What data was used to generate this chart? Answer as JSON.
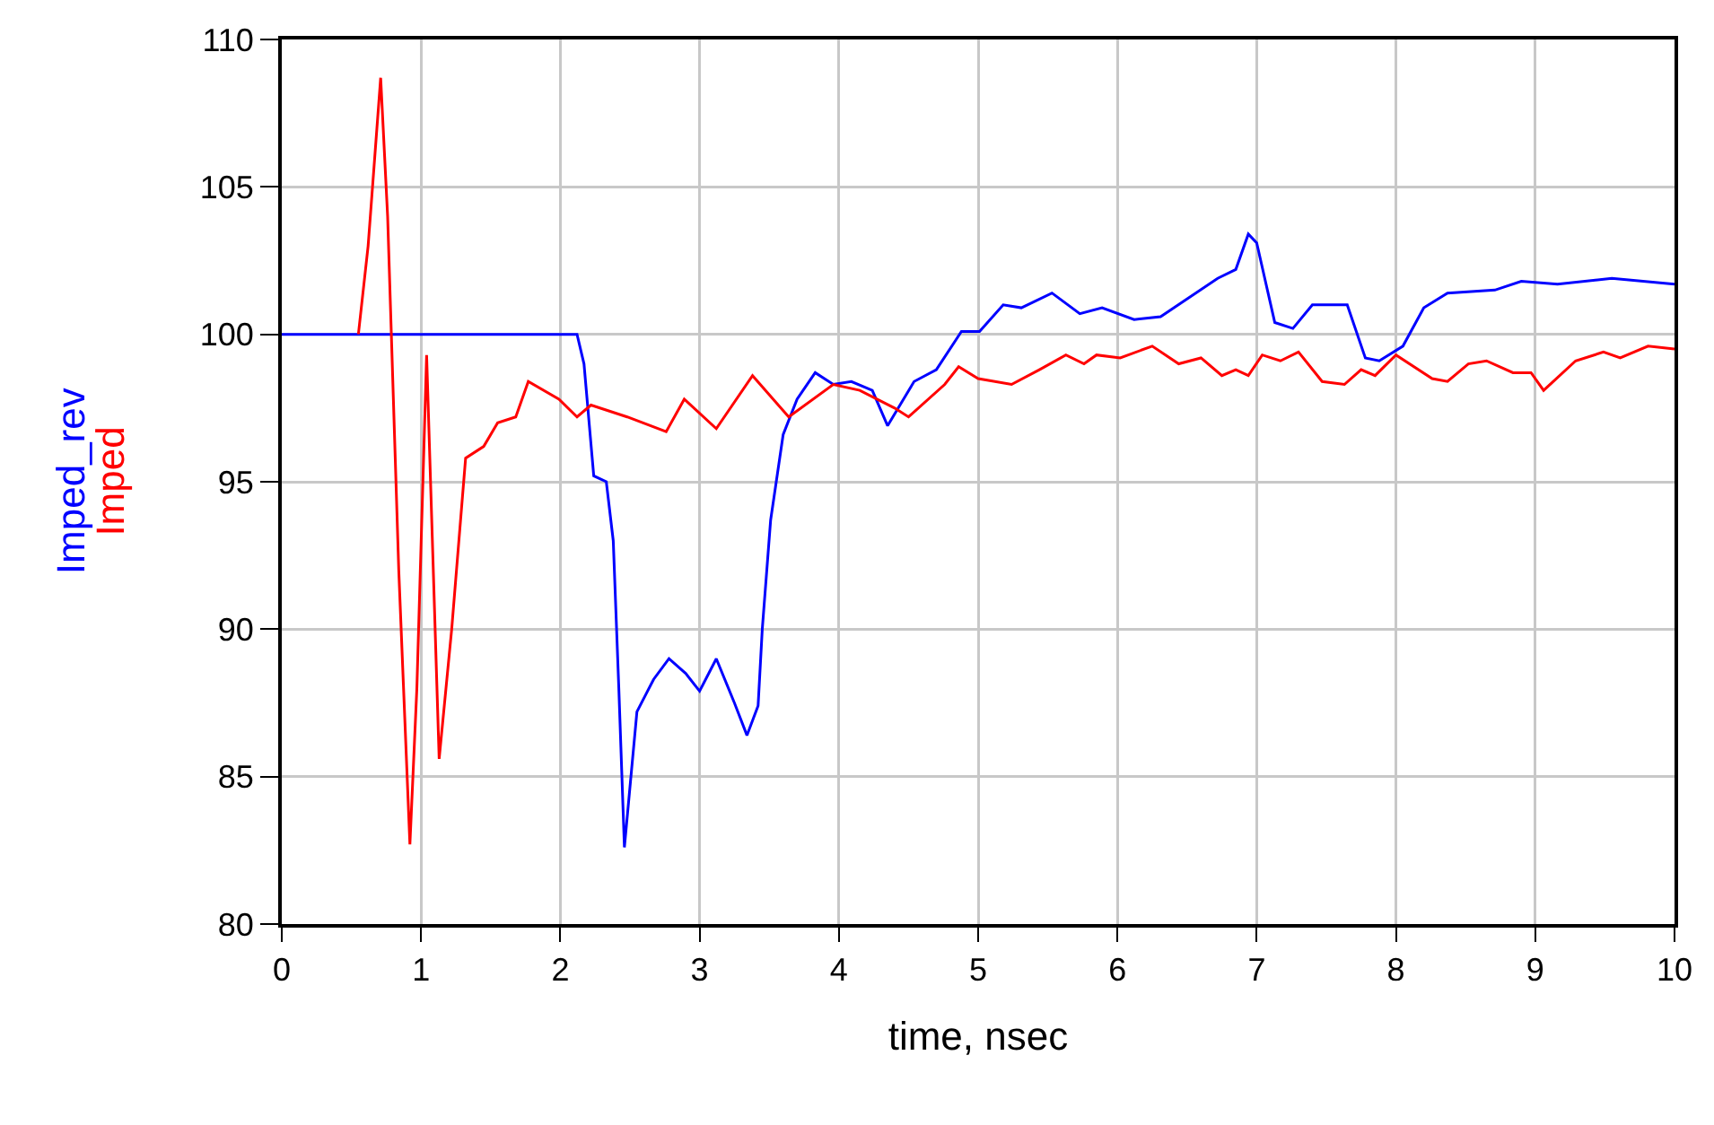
{
  "chart_data": {
    "type": "line",
    "xlabel": "time, nsec",
    "xlim": [
      0,
      10
    ],
    "xticks": [
      0,
      1,
      2,
      3,
      4,
      5,
      6,
      7,
      8,
      9,
      10
    ],
    "ylim": [
      80,
      110
    ],
    "yticks": [
      80,
      85,
      90,
      95,
      100,
      105,
      110
    ],
    "grid": true,
    "legend": false,
    "line_style": "solid",
    "series": [
      {
        "name": "Imped_rev",
        "color": "#0000ff",
        "x": [
          0,
          2.12,
          2.17,
          2.24,
          2.33,
          2.38,
          2.42,
          2.46,
          2.55,
          2.67,
          2.78,
          2.9,
          3.0,
          3.12,
          3.25,
          3.34,
          3.42,
          3.45,
          3.51,
          3.6,
          3.7,
          3.83,
          3.96,
          4.09,
          4.24,
          4.35,
          4.54,
          4.7,
          4.88,
          5.01,
          5.18,
          5.31,
          5.53,
          5.73,
          5.89,
          6.12,
          6.31,
          6.72,
          6.85,
          6.94,
          7.0,
          7.13,
          7.26,
          7.4,
          7.65,
          7.78,
          7.88,
          8.05,
          8.2,
          8.37,
          8.71,
          8.9,
          9.16,
          9.55,
          10
        ],
        "values": [
          100,
          100,
          99,
          95.2,
          95,
          93,
          88,
          82.6,
          87.2,
          88.3,
          89,
          88.5,
          87.9,
          89,
          87.5,
          86.4,
          87.4,
          90,
          93.7,
          96.6,
          97.8,
          98.7,
          98.3,
          98.4,
          98.1,
          96.9,
          98.4,
          98.8,
          100.1,
          100.1,
          101,
          100.9,
          101.4,
          100.7,
          100.9,
          100.5,
          100.6,
          101.9,
          102.2,
          103.4,
          103.1,
          100.4,
          100.2,
          101,
          101,
          99.2,
          99.1,
          99.6,
          100.9,
          101.4,
          101.5,
          101.8,
          101.7,
          101.9,
          101.7
        ]
      },
      {
        "name": "Imped",
        "color": "#ff0000",
        "x": [
          0.55,
          0.62,
          0.71,
          0.76,
          0.84,
          0.92,
          0.97,
          1.04,
          1.13,
          1.22,
          1.32,
          1.45,
          1.55,
          1.68,
          1.77,
          1.99,
          2.12,
          2.22,
          2.48,
          2.76,
          2.89,
          3.12,
          3.38,
          3.64,
          3.96,
          4.15,
          4.4,
          4.5,
          4.76,
          4.86,
          5.0,
          5.24,
          5.44,
          5.63,
          5.76,
          5.85,
          6.02,
          6.25,
          6.44,
          6.6,
          6.75,
          6.85,
          6.94,
          7.04,
          7.17,
          7.3,
          7.47,
          7.63,
          7.75,
          7.85,
          8.0,
          8.26,
          8.37,
          8.52,
          8.65,
          8.84,
          8.97,
          9.06,
          9.29,
          9.49,
          9.61,
          9.81,
          10
        ],
        "values": [
          100,
          103,
          108.7,
          104,
          92,
          82.7,
          88,
          99.3,
          85.6,
          90,
          95.8,
          96.2,
          97,
          97.2,
          98.4,
          97.8,
          97.2,
          97.6,
          97.2,
          96.7,
          97.8,
          96.8,
          98.6,
          97.2,
          98.3,
          98.1,
          97.5,
          97.2,
          98.3,
          98.9,
          98.5,
          98.3,
          98.8,
          99.3,
          99,
          99.3,
          99.2,
          99.6,
          99,
          99.2,
          98.6,
          98.8,
          98.6,
          99.3,
          99.1,
          99.4,
          98.4,
          98.3,
          98.8,
          98.6,
          99.3,
          98.5,
          98.4,
          99,
          99.1,
          98.7,
          98.7,
          98.1,
          99.1,
          99.4,
          99.2,
          99.6,
          99.5
        ]
      }
    ]
  }
}
